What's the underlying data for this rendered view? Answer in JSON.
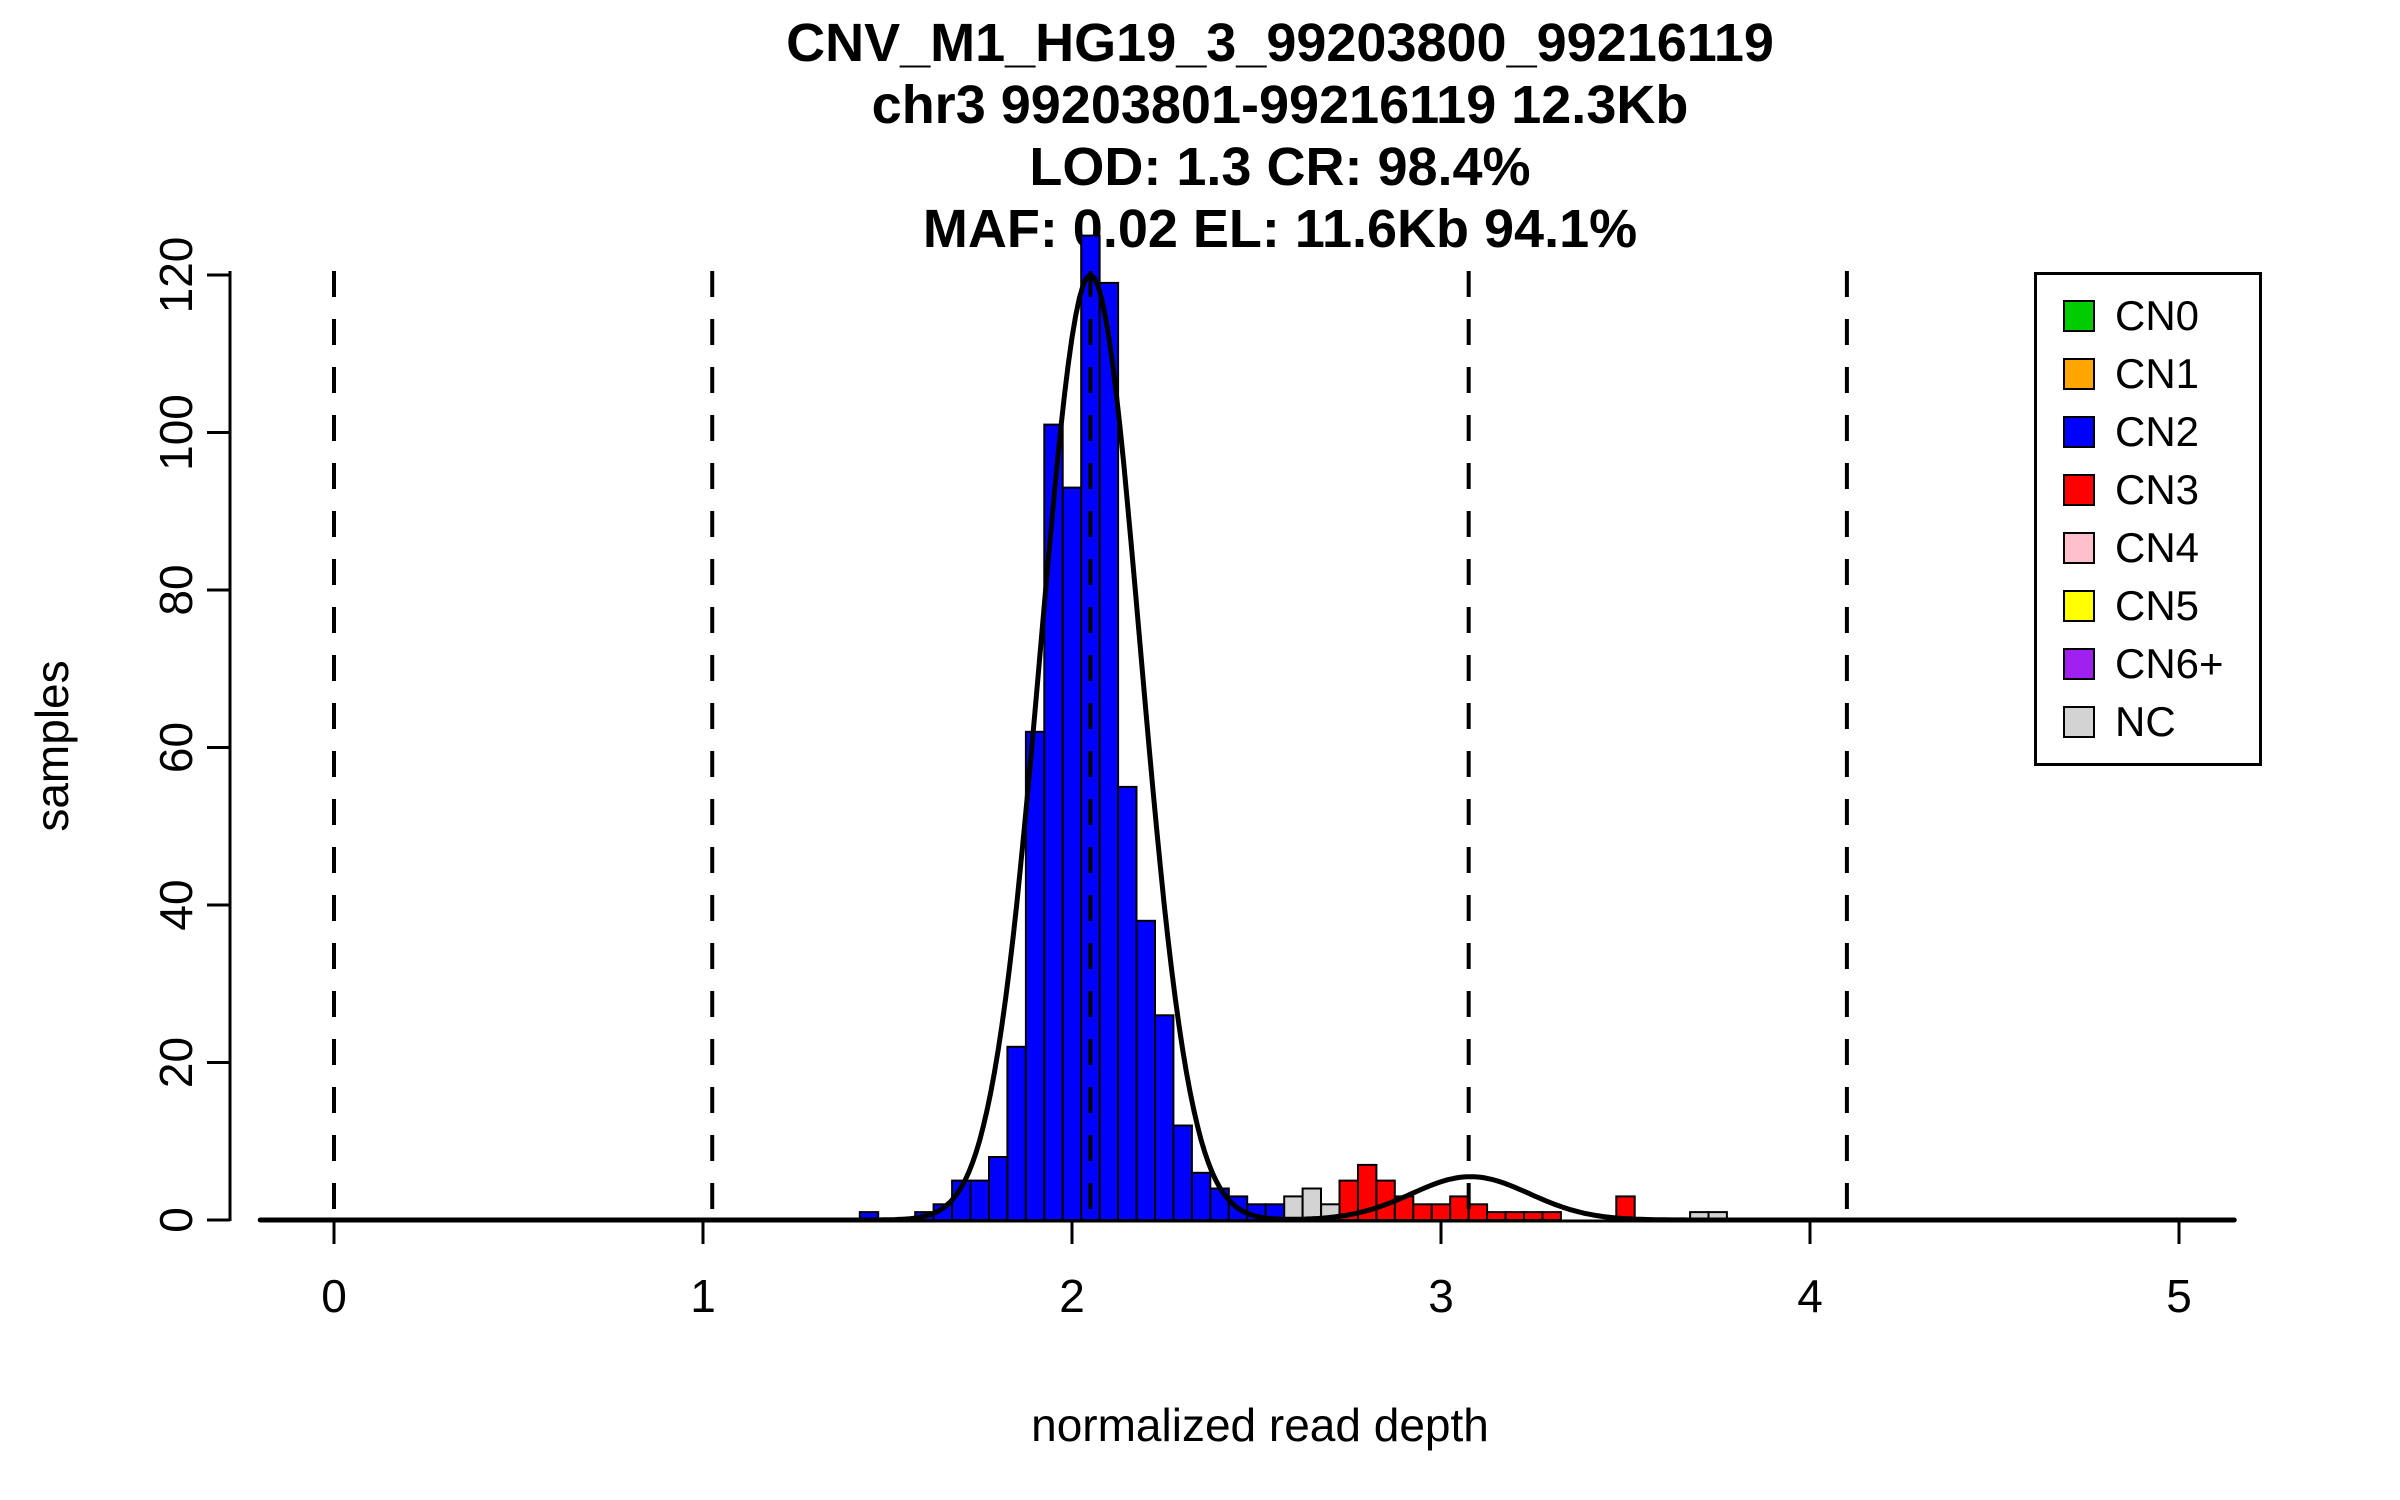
{
  "title": {
    "line1": "CNV_M1_HG19_3_99203800_99216119",
    "line2": "chr3 99203801-99216119 12.3Kb",
    "line3": "LOD: 1.3 CR: 98.4%",
    "line4": "MAF: 0.02 EL: 11.6Kb 94.1%"
  },
  "axes": {
    "x_label": "normalized read depth",
    "y_label": "samples",
    "x_ticks": [
      0,
      1,
      2,
      3,
      4,
      5
    ],
    "y_ticks": [
      0,
      20,
      40,
      60,
      80,
      100,
      120
    ]
  },
  "legend": {
    "position": "topright",
    "items": [
      {
        "label": "CN0",
        "color": "#00CC00"
      },
      {
        "label": "CN1",
        "color": "#FFA500"
      },
      {
        "label": "CN2",
        "color": "#0000FF"
      },
      {
        "label": "CN3",
        "color": "#FF0000"
      },
      {
        "label": "CN4",
        "color": "#FFC0CB"
      },
      {
        "label": "CN5",
        "color": "#FFFF00"
      },
      {
        "label": "CN6+",
        "color": "#A020F0"
      },
      {
        "label": "NC",
        "color": "#D3D3D3"
      }
    ]
  },
  "chart_data": {
    "type": "bar",
    "subtype": "histogram-with-density",
    "title": "CNV_M1_HG19_3_99203800_99216119",
    "xlabel": "normalized read depth",
    "ylabel": "samples",
    "xlim": [
      -0.2,
      5.2
    ],
    "ylim": [
      0,
      125
    ],
    "grid": false,
    "bin_width": 0.05,
    "colors": {
      "CN2": "#0000FF",
      "CN3": "#FF0000",
      "NC": "#D3D3D3"
    },
    "bars": [
      {
        "x": 1.425,
        "count": 1,
        "cn": "CN2"
      },
      {
        "x": 1.575,
        "count": 1,
        "cn": "CN2"
      },
      {
        "x": 1.625,
        "count": 2,
        "cn": "CN2"
      },
      {
        "x": 1.675,
        "count": 5,
        "cn": "CN2"
      },
      {
        "x": 1.725,
        "count": 5,
        "cn": "CN2"
      },
      {
        "x": 1.775,
        "count": 8,
        "cn": "CN2"
      },
      {
        "x": 1.825,
        "count": 22,
        "cn": "CN2"
      },
      {
        "x": 1.875,
        "count": 62,
        "cn": "CN2"
      },
      {
        "x": 1.925,
        "count": 101,
        "cn": "CN2"
      },
      {
        "x": 1.975,
        "count": 93,
        "cn": "CN2"
      },
      {
        "x": 2.025,
        "count": 125,
        "cn": "CN2"
      },
      {
        "x": 2.075,
        "count": 119,
        "cn": "CN2"
      },
      {
        "x": 2.125,
        "count": 55,
        "cn": "CN2"
      },
      {
        "x": 2.175,
        "count": 38,
        "cn": "CN2"
      },
      {
        "x": 2.225,
        "count": 26,
        "cn": "CN2"
      },
      {
        "x": 2.275,
        "count": 12,
        "cn": "CN2"
      },
      {
        "x": 2.325,
        "count": 6,
        "cn": "CN2"
      },
      {
        "x": 2.375,
        "count": 4,
        "cn": "CN2"
      },
      {
        "x": 2.425,
        "count": 3,
        "cn": "CN2"
      },
      {
        "x": 2.475,
        "count": 2,
        "cn": "CN2"
      },
      {
        "x": 2.525,
        "count": 2,
        "cn": "CN2"
      },
      {
        "x": 2.575,
        "count": 3,
        "cn": "NC"
      },
      {
        "x": 2.625,
        "count": 4,
        "cn": "NC"
      },
      {
        "x": 2.675,
        "count": 2,
        "cn": "NC"
      },
      {
        "x": 2.725,
        "count": 5,
        "cn": "CN3"
      },
      {
        "x": 2.775,
        "count": 7,
        "cn": "CN3"
      },
      {
        "x": 2.825,
        "count": 5,
        "cn": "CN3"
      },
      {
        "x": 2.875,
        "count": 3,
        "cn": "CN3"
      },
      {
        "x": 2.925,
        "count": 2,
        "cn": "CN3"
      },
      {
        "x": 2.975,
        "count": 2,
        "cn": "CN3"
      },
      {
        "x": 3.025,
        "count": 3,
        "cn": "CN3"
      },
      {
        "x": 3.075,
        "count": 2,
        "cn": "CN3"
      },
      {
        "x": 3.125,
        "count": 1,
        "cn": "CN3"
      },
      {
        "x": 3.175,
        "count": 1,
        "cn": "CN3"
      },
      {
        "x": 3.225,
        "count": 1,
        "cn": "CN3"
      },
      {
        "x": 3.275,
        "count": 1,
        "cn": "CN3"
      },
      {
        "x": 3.475,
        "count": 3,
        "cn": "CN3"
      },
      {
        "x": 3.675,
        "count": 1,
        "cn": "NC"
      },
      {
        "x": 3.725,
        "count": 1,
        "cn": "NC"
      }
    ],
    "curve": {
      "x_range": [
        -0.2,
        5.15
      ],
      "components": [
        {
          "amplitude": 120,
          "mean": 2.05,
          "sd": 0.135
        },
        {
          "amplitude": 5.5,
          "mean": 3.08,
          "sd": 0.16
        }
      ]
    },
    "dashed_lines_x": [
      0,
      1.025,
      2.05,
      3.075,
      4.1
    ]
  }
}
